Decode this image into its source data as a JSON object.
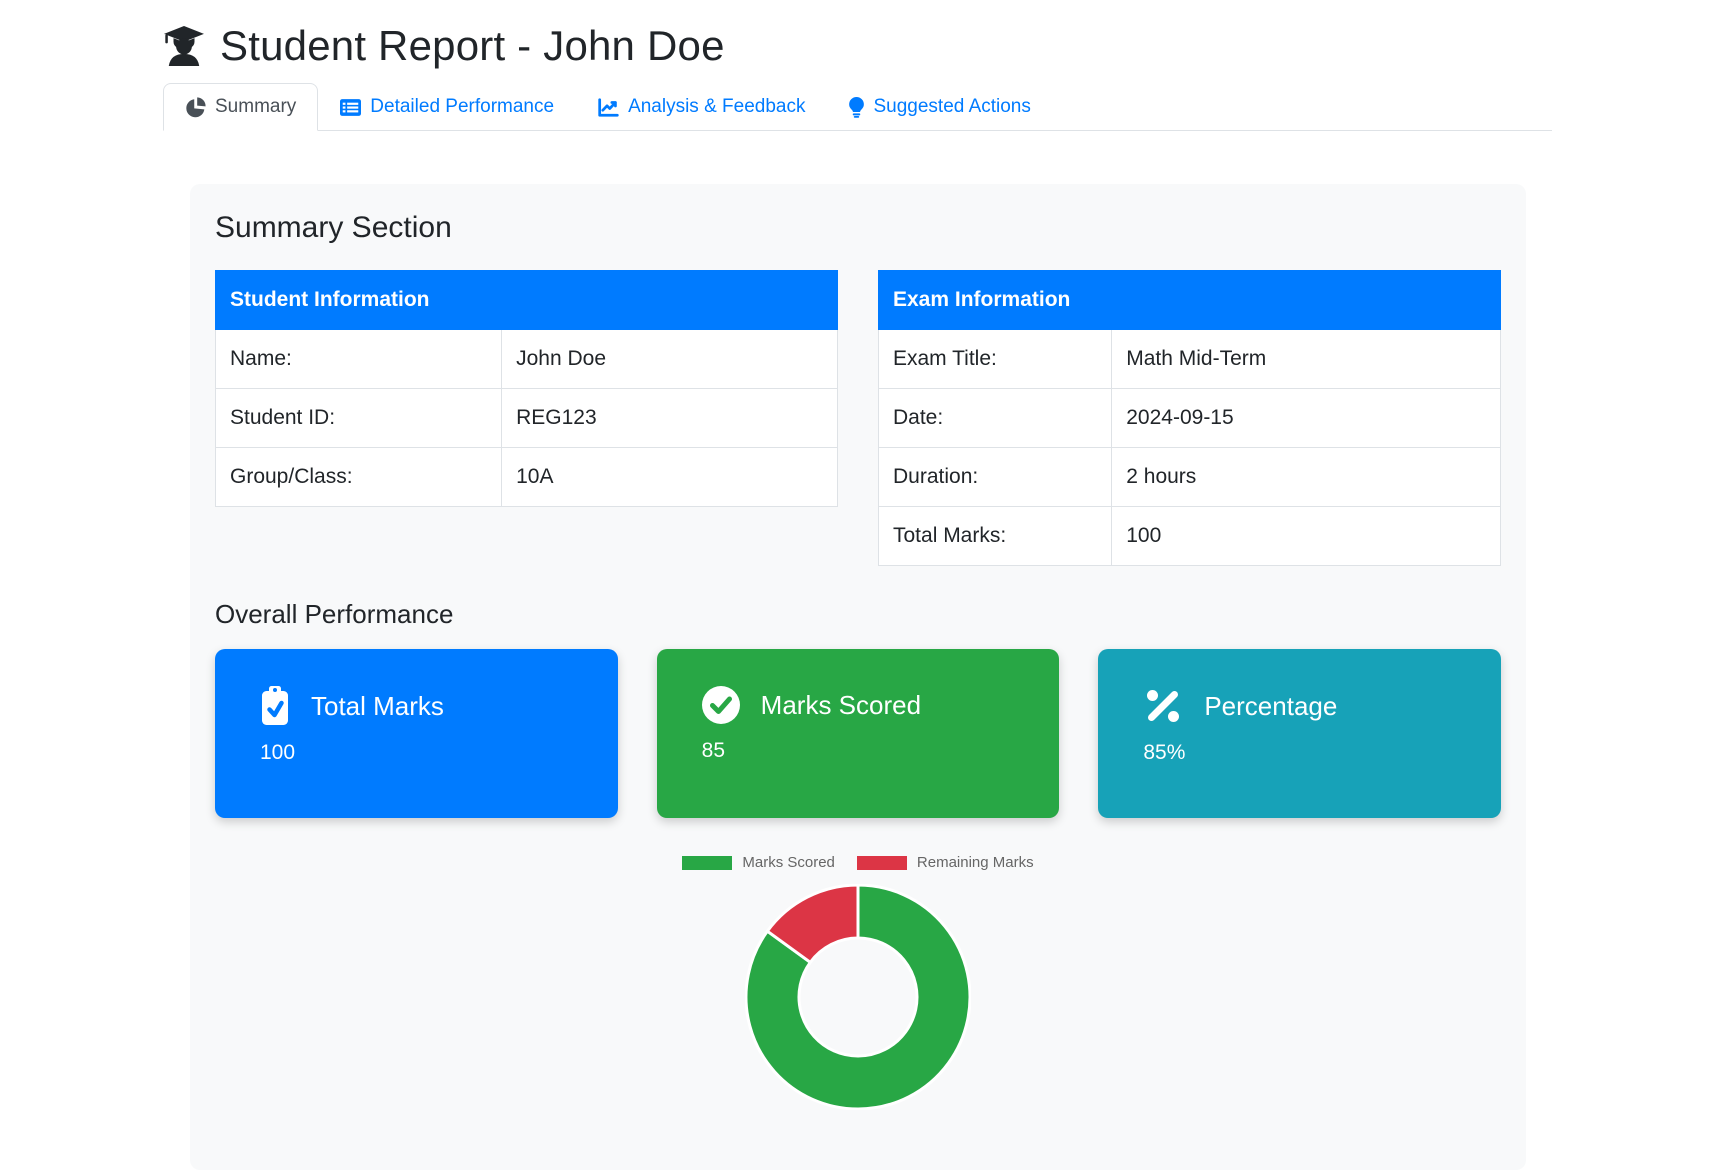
{
  "header": {
    "title": "Student Report - John Doe",
    "icon": "user-graduate-icon"
  },
  "tabs": [
    {
      "label": "Summary",
      "icon": "chart-pie-icon",
      "active": true
    },
    {
      "label": "Detailed Performance",
      "icon": "table-list-icon",
      "active": false
    },
    {
      "label": "Analysis & Feedback",
      "icon": "chart-line-icon",
      "active": false
    },
    {
      "label": "Suggested Actions",
      "icon": "lightbulb-icon",
      "active": false
    }
  ],
  "summary": {
    "heading": "Summary Section",
    "student_table": {
      "header": "Student Information",
      "rows": [
        {
          "label": "Name:",
          "value": "John Doe"
        },
        {
          "label": "Student ID:",
          "value": "REG123"
        },
        {
          "label": "Group/Class:",
          "value": "10A"
        }
      ]
    },
    "exam_table": {
      "header": "Exam Information",
      "rows": [
        {
          "label": "Exam Title:",
          "value": "Math Mid-Term"
        },
        {
          "label": "Date:",
          "value": "2024-09-15"
        },
        {
          "label": "Duration:",
          "value": "2 hours"
        },
        {
          "label": "Total Marks:",
          "value": "100"
        }
      ]
    }
  },
  "performance": {
    "heading": "Overall Performance",
    "cards": [
      {
        "label": "Total Marks",
        "value": "100",
        "color": "#007bff",
        "icon": "clipboard-check-icon"
      },
      {
        "label": "Marks Scored",
        "value": "85",
        "color": "#28a745",
        "icon": "check-circle-icon"
      },
      {
        "label": "Percentage",
        "value": "85%",
        "color": "#17a2b8",
        "icon": "percent-icon"
      }
    ]
  },
  "chart_data": {
    "type": "pie",
    "style": "doughnut",
    "labels": [
      "Marks Scored",
      "Remaining Marks"
    ],
    "values": [
      85,
      15
    ],
    "colors": [
      "#28a745",
      "#dc3545"
    ],
    "legend_position": "top",
    "cutout_ratio": 0.53,
    "start_angle": "top",
    "direction": "clockwise",
    "border_color": "#ffffff"
  },
  "colors": {
    "primary": "#007bff",
    "success": "#28a745",
    "info": "#17a2b8",
    "danger": "#dc3545",
    "card_background": "#f8f9fa",
    "border": "#dee2e6",
    "active_tab_text": "#495057",
    "text": "#212529",
    "legend_text": "#666666"
  }
}
